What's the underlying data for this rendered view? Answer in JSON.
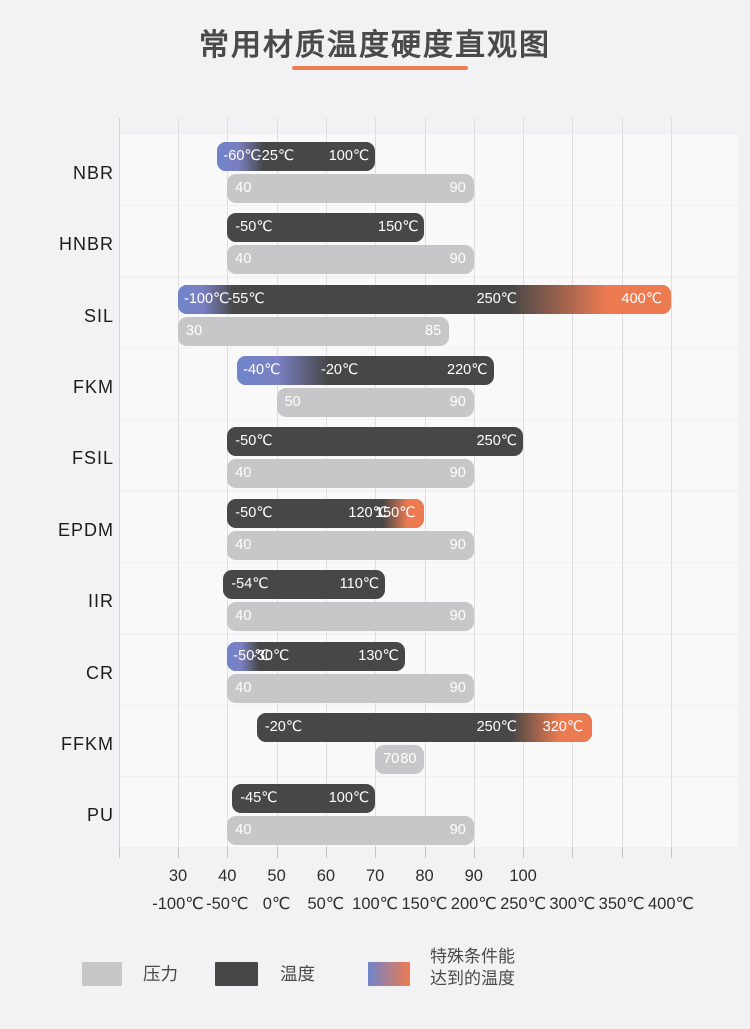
{
  "title": "常用材质温度硬度直观图",
  "colors": {
    "background": "#f2f2f4",
    "bar_dark": "#474747",
    "bar_gray": "#c7c7c9",
    "special_low_blue": "#6f84cb",
    "special_high_orange": "#ec7b51",
    "accent_underline": "#ed7c50"
  },
  "chart_data": {
    "type": "bar",
    "orientation": "horizontal-range",
    "grid": true,
    "temp_axis": {
      "min": -100,
      "max": 400,
      "step": 50,
      "tick_labels": [
        "-100℃",
        "-50℃",
        "0℃",
        "50℃",
        "100℃",
        "150℃",
        "200℃",
        "250℃",
        "300℃",
        "350℃",
        "400℃"
      ]
    },
    "hardness_axis": {
      "min": 30,
      "max": 100,
      "step": 10,
      "tick_labels": [
        "30",
        "40",
        "50",
        "60",
        "70",
        "80",
        "90",
        "100"
      ]
    },
    "rows": [
      {
        "material": "NBR",
        "temp_special_low": -60,
        "temp_min": -25,
        "temp_max": 100,
        "temp_special_high": null,
        "gradient_blend_end_temp": -25,
        "temp_special_low_label": "-60℃",
        "temp_min_label": "-25℃",
        "temp_max_label": "100℃",
        "temp_special_high_label": null,
        "hardness_min": 40,
        "hardness_max": 90,
        "hardness_min_label": "40",
        "hardness_max_label": "90"
      },
      {
        "material": "HNBR",
        "temp_special_low": null,
        "temp_min": -50,
        "temp_max": 150,
        "temp_special_high": null,
        "gradient_blend_end_temp": null,
        "temp_special_low_label": null,
        "temp_min_label": "-50℃",
        "temp_max_label": "150℃",
        "temp_special_high_label": null,
        "hardness_min": 40,
        "hardness_max": 90,
        "hardness_min_label": "40",
        "hardness_max_label": "90"
      },
      {
        "material": "SIL",
        "temp_special_low": -100,
        "temp_min": -55,
        "temp_max": 250,
        "temp_special_high": 400,
        "gradient_blend_end_temp": -55,
        "temp_special_low_label": "-100℃",
        "temp_min_label": "-55℃",
        "temp_max_label": "250℃",
        "temp_special_high_label": "400℃",
        "hardness_min": 30,
        "hardness_max": 85,
        "hardness_min_label": "30",
        "hardness_max_label": "85"
      },
      {
        "material": "FKM",
        "temp_special_low": -40,
        "temp_min": -20,
        "temp_max": 220,
        "temp_special_high": null,
        "gradient_blend_end_temp": 40,
        "temp_special_low_label": "-40℃",
        "temp_min_label": "-20℃",
        "temp_max_label": "220℃",
        "temp_special_high_label": null,
        "hardness_min": 50,
        "hardness_max": 90,
        "hardness_min_label": "50",
        "hardness_max_label": "90"
      },
      {
        "material": "FSIL",
        "temp_special_low": null,
        "temp_min": -50,
        "temp_max": 250,
        "temp_special_high": null,
        "gradient_blend_end_temp": null,
        "temp_special_low_label": null,
        "temp_min_label": "-50℃",
        "temp_max_label": "250℃",
        "temp_special_high_label": null,
        "hardness_min": 40,
        "hardness_max": 90,
        "hardness_min_label": "40",
        "hardness_max_label": "90"
      },
      {
        "material": "EPDM",
        "temp_special_low": null,
        "temp_min": -50,
        "temp_max": 120,
        "temp_special_high": 150,
        "gradient_blend_end_temp": null,
        "temp_special_low_label": null,
        "temp_min_label": "-50℃",
        "temp_max_label": "120℃",
        "temp_special_high_label": "150℃",
        "hardness_min": 40,
        "hardness_max": 90,
        "hardness_min_label": "40",
        "hardness_max_label": "90"
      },
      {
        "material": "IIR",
        "temp_special_low": null,
        "temp_min": -54,
        "temp_max": 110,
        "temp_special_high": null,
        "gradient_blend_end_temp": null,
        "temp_special_low_label": null,
        "temp_min_label": "-54℃",
        "temp_max_label": "110℃",
        "temp_special_high_label": null,
        "hardness_min": 40,
        "hardness_max": 90,
        "hardness_min_label": "40",
        "hardness_max_label": "90"
      },
      {
        "material": "CR",
        "temp_special_low": -50,
        "temp_min": -30,
        "temp_max": 130,
        "temp_special_high": null,
        "gradient_blend_end_temp": -30,
        "temp_special_low_label": "-50℃",
        "temp_min_label": "-30℃",
        "temp_max_label": "130℃",
        "temp_special_high_label": null,
        "hardness_min": 40,
        "hardness_max": 90,
        "hardness_min_label": "40",
        "hardness_max_label": "90"
      },
      {
        "material": "FFKM",
        "temp_special_low": null,
        "temp_min": -20,
        "temp_max": 250,
        "temp_special_high": 320,
        "gradient_blend_end_temp": null,
        "temp_special_low_label": null,
        "temp_min_label": "-20℃",
        "temp_max_label": "250℃",
        "temp_special_high_label": "320℃",
        "hardness_min": 70,
        "hardness_max": 80,
        "hardness_min_label": "70",
        "hardness_max_label": "80"
      },
      {
        "material": "PU",
        "temp_special_low": null,
        "temp_min": -45,
        "temp_max": 100,
        "temp_special_high": null,
        "gradient_blend_end_temp": null,
        "temp_special_low_label": null,
        "temp_min_label": "-45℃",
        "temp_max_label": "100℃",
        "temp_special_high_label": null,
        "hardness_min": 40,
        "hardness_max": 90,
        "hardness_min_label": "40",
        "hardness_max_label": "90"
      }
    ],
    "legend": {
      "pressure_label": "压力",
      "temperature_label": "温度",
      "special_label_line1": "特殊条件能",
      "special_label_line2": "达到的温度"
    }
  }
}
